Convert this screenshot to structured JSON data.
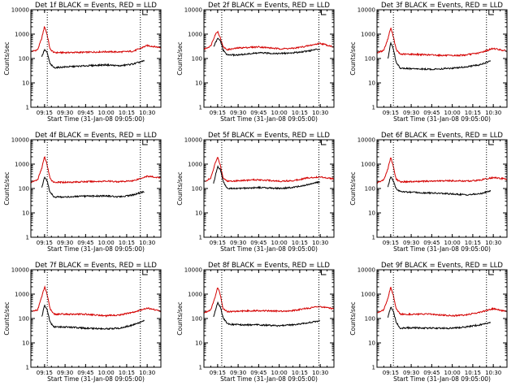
{
  "chart_data": [
    {
      "type": "line",
      "title": "Det 1f BLACK = Events, RED = LLD",
      "xlabel": "Start Time (31-Jan-08 09:05:00)",
      "ylabel": "Counts/sec",
      "yscale": "log",
      "ylim": [
        1,
        10000
      ],
      "x_ticks": [
        "09:15",
        "09:30",
        "09:45",
        "10:00",
        "10:15",
        "10:30"
      ],
      "y_ticks": [
        "1",
        "10",
        "100",
        "1000",
        "10000"
      ],
      "xlim": [
        "09:05",
        "10:40"
      ],
      "vlines": [
        "09:17",
        "10:25"
      ],
      "series": [
        {
          "color": "#d40000",
          "x": [
            "09:05",
            "09:10",
            "09:13",
            "09:15",
            "09:17",
            "09:19",
            "09:22",
            "09:30",
            "09:45",
            "10:00",
            "10:10",
            "10:20",
            "10:30",
            "10:40"
          ],
          "values": [
            190,
            230,
            700,
            2100,
            900,
            240,
            175,
            175,
            180,
            190,
            185,
            200,
            340,
            280
          ]
        },
        {
          "color": "#000000",
          "x": [
            "09:13",
            "09:15",
            "09:17",
            "09:19",
            "09:22",
            "09:30",
            "09:45",
            "10:00",
            "10:10",
            "10:20",
            "10:28"
          ],
          "values": [
            120,
            230,
            170,
            60,
            42,
            45,
            50,
            55,
            50,
            60,
            80
          ]
        }
      ]
    },
    {
      "type": "line",
      "title": "Det 2f BLACK = Events, RED = LLD",
      "xlabel": "Start Time (31-Jan-08 09:05:00)",
      "ylabel": "Counts/sec",
      "yscale": "log",
      "ylim": [
        1,
        10000
      ],
      "x_ticks": [
        "09:15",
        "09:30",
        "09:45",
        "10:00",
        "10:15",
        "10:30"
      ],
      "y_ticks": [
        "1",
        "10",
        "100",
        "1000",
        "10000"
      ],
      "xlim": [
        "09:05",
        "10:40"
      ],
      "vlines": [
        "09:18",
        "10:29"
      ],
      "series": [
        {
          "color": "#d40000",
          "x": [
            "09:05",
            "09:10",
            "09:13",
            "09:15",
            "09:17",
            "09:19",
            "09:22",
            "09:30",
            "09:45",
            "10:00",
            "10:10",
            "10:20",
            "10:30",
            "10:40"
          ],
          "values": [
            240,
            330,
            900,
            1300,
            700,
            300,
            230,
            270,
            300,
            250,
            260,
            320,
            420,
            300
          ]
        },
        {
          "color": "#000000",
          "x": [
            "09:12",
            "09:15",
            "09:17",
            "09:19",
            "09:22",
            "09:30",
            "09:45",
            "10:00",
            "10:10",
            "10:20",
            "10:30"
          ],
          "values": [
            300,
            650,
            550,
            220,
            140,
            140,
            170,
            160,
            170,
            200,
            250
          ]
        }
      ]
    },
    {
      "type": "line",
      "title": "Det 3f BLACK = Events, RED = LLD",
      "xlabel": "Start Time (31-Jan-08 09:05:00)",
      "ylabel": "Counts/sec",
      "yscale": "log",
      "ylim": [
        1,
        10000
      ],
      "x_ticks": [
        "09:15",
        "09:30",
        "09:45",
        "10:00",
        "10:15",
        "10:30"
      ],
      "y_ticks": [
        "1",
        "10",
        "100",
        "1000",
        "10000"
      ],
      "xlim": [
        "09:05",
        "10:40"
      ],
      "vlines": [
        "09:17",
        "10:25"
      ],
      "series": [
        {
          "color": "#d40000",
          "x": [
            "09:05",
            "09:10",
            "09:13",
            "09:15",
            "09:17",
            "09:19",
            "09:22",
            "09:30",
            "09:45",
            "10:00",
            "10:10",
            "10:20",
            "10:30",
            "10:40"
          ],
          "values": [
            170,
            220,
            650,
            1800,
            800,
            230,
            150,
            150,
            140,
            130,
            140,
            170,
            260,
            200
          ]
        },
        {
          "color": "#000000",
          "x": [
            "09:13",
            "09:15",
            "09:17",
            "09:19",
            "09:22",
            "09:30",
            "09:45",
            "10:00",
            "10:10",
            "10:20",
            "10:28"
          ],
          "values": [
            100,
            420,
            250,
            70,
            40,
            38,
            36,
            40,
            45,
            55,
            80
          ]
        }
      ]
    },
    {
      "type": "line",
      "title": "Det 4f BLACK = Events, RED = LLD",
      "xlabel": "Start Time (31-Jan-08 09:05:00)",
      "ylabel": "Counts/sec",
      "yscale": "log",
      "ylim": [
        1,
        10000
      ],
      "x_ticks": [
        "09:15",
        "09:30",
        "09:45",
        "10:00",
        "10:15",
        "10:30"
      ],
      "y_ticks": [
        "1",
        "10",
        "100",
        "1000",
        "10000"
      ],
      "xlim": [
        "09:05",
        "10:40"
      ],
      "vlines": [
        "09:17",
        "10:25"
      ],
      "series": [
        {
          "color": "#d40000",
          "x": [
            "09:05",
            "09:10",
            "09:13",
            "09:15",
            "09:17",
            "09:19",
            "09:22",
            "09:30",
            "09:45",
            "10:00",
            "10:10",
            "10:20",
            "10:30",
            "10:40"
          ],
          "values": [
            180,
            230,
            700,
            2000,
            900,
            250,
            180,
            180,
            190,
            200,
            190,
            210,
            320,
            270
          ]
        },
        {
          "color": "#000000",
          "x": [
            "09:13",
            "09:15",
            "09:17",
            "09:19",
            "09:22",
            "09:30",
            "09:45",
            "10:00",
            "10:10",
            "10:20",
            "10:28"
          ],
          "values": [
            110,
            300,
            200,
            70,
            45,
            45,
            48,
            50,
            45,
            55,
            75
          ]
        }
      ]
    },
    {
      "type": "line",
      "title": "Det 5f BLACK = Events, RED = LLD",
      "xlabel": "Start Time (31-Jan-08 09:05:00)",
      "ylabel": "Counts/sec",
      "yscale": "log",
      "ylim": [
        1,
        10000
      ],
      "x_ticks": [
        "09:15",
        "09:30",
        "09:45",
        "10:00",
        "10:15",
        "10:30"
      ],
      "y_ticks": [
        "1",
        "10",
        "100",
        "1000",
        "10000"
      ],
      "xlim": [
        "09:05",
        "10:40"
      ],
      "vlines": [
        "09:18",
        "10:29"
      ],
      "series": [
        {
          "color": "#d40000",
          "x": [
            "09:05",
            "09:10",
            "09:13",
            "09:15",
            "09:17",
            "09:19",
            "09:22",
            "09:30",
            "09:45",
            "10:00",
            "10:10",
            "10:20",
            "10:30",
            "10:40"
          ],
          "values": [
            190,
            260,
            1000,
            1900,
            900,
            280,
            200,
            210,
            230,
            200,
            210,
            270,
            300,
            250
          ]
        },
        {
          "color": "#000000",
          "x": [
            "09:12",
            "09:15",
            "09:17",
            "09:19",
            "09:22",
            "09:30",
            "09:45",
            "10:00",
            "10:10",
            "10:20",
            "10:30"
          ],
          "values": [
            160,
            800,
            600,
            200,
            100,
            100,
            110,
            100,
            110,
            140,
            190
          ]
        }
      ]
    },
    {
      "type": "line",
      "title": "Det 6f BLACK = Events, RED = LLD",
      "xlabel": "Start Time (31-Jan-08 09:05:00)",
      "ylabel": "Counts/sec",
      "yscale": "log",
      "ylim": [
        1,
        10000
      ],
      "x_ticks": [
        "09:15",
        "09:30",
        "09:45",
        "10:00",
        "10:15",
        "10:30"
      ],
      "y_ticks": [
        "1",
        "10",
        "100",
        "1000",
        "10000"
      ],
      "xlim": [
        "09:05",
        "10:40"
      ],
      "vlines": [
        "09:17",
        "10:25"
      ],
      "series": [
        {
          "color": "#d40000",
          "x": [
            "09:05",
            "09:10",
            "09:13",
            "09:15",
            "09:17",
            "09:19",
            "09:22",
            "09:30",
            "09:45",
            "10:00",
            "10:10",
            "10:20",
            "10:30",
            "10:40"
          ],
          "values": [
            170,
            230,
            650,
            1900,
            800,
            240,
            190,
            190,
            200,
            210,
            200,
            220,
            280,
            240
          ]
        },
        {
          "color": "#000000",
          "x": [
            "09:13",
            "09:15",
            "09:17",
            "09:19",
            "09:22",
            "09:30",
            "09:45",
            "10:00",
            "10:10",
            "10:20",
            "10:28"
          ],
          "values": [
            120,
            300,
            200,
            100,
            75,
            70,
            65,
            60,
            55,
            60,
            80
          ]
        }
      ]
    },
    {
      "type": "line",
      "title": "Det 7f BLACK = Events, RED = LLD",
      "xlabel": "Start Time (31-Jan-08 09:05:00)",
      "ylabel": "Counts/sec",
      "yscale": "log",
      "ylim": [
        1,
        10000
      ],
      "x_ticks": [
        "09:15",
        "09:30",
        "09:45",
        "10:00",
        "10:15",
        "10:30"
      ],
      "y_ticks": [
        "1",
        "10",
        "100",
        "1000",
        "10000"
      ],
      "xlim": [
        "09:05",
        "10:40"
      ],
      "vlines": [
        "09:17",
        "10:25"
      ],
      "series": [
        {
          "color": "#d40000",
          "x": [
            "09:05",
            "09:10",
            "09:13",
            "09:15",
            "09:17",
            "09:19",
            "09:22",
            "09:30",
            "09:45",
            "10:00",
            "10:10",
            "10:20",
            "10:30",
            "10:40"
          ],
          "values": [
            190,
            230,
            800,
            2000,
            900,
            250,
            150,
            150,
            150,
            130,
            140,
            180,
            270,
            200
          ]
        },
        {
          "color": "#000000",
          "x": [
            "09:13",
            "09:15",
            "09:17",
            "09:19",
            "09:22",
            "09:30",
            "09:45",
            "10:00",
            "10:10",
            "10:20",
            "10:28"
          ],
          "values": [
            120,
            350,
            220,
            70,
            45,
            45,
            40,
            38,
            40,
            55,
            80
          ]
        }
      ]
    },
    {
      "type": "line",
      "title": "Det 8f BLACK = Events, RED = LLD",
      "xlabel": "Start Time (31-Jan-08 09:05:00)",
      "ylabel": "Counts/sec",
      "yscale": "log",
      "ylim": [
        1,
        10000
      ],
      "x_ticks": [
        "09:15",
        "09:30",
        "09:45",
        "10:00",
        "10:15",
        "10:30"
      ],
      "y_ticks": [
        "1",
        "10",
        "100",
        "1000",
        "10000"
      ],
      "xlim": [
        "09:05",
        "10:40"
      ],
      "vlines": [
        "09:18",
        "10:29"
      ],
      "series": [
        {
          "color": "#d40000",
          "x": [
            "09:05",
            "09:10",
            "09:13",
            "09:15",
            "09:17",
            "09:19",
            "09:22",
            "09:30",
            "09:45",
            "10:00",
            "10:10",
            "10:20",
            "10:30",
            "10:40"
          ],
          "values": [
            170,
            230,
            700,
            2000,
            900,
            260,
            190,
            200,
            210,
            200,
            210,
            260,
            310,
            250
          ]
        },
        {
          "color": "#000000",
          "x": [
            "09:12",
            "09:15",
            "09:17",
            "09:19",
            "09:22",
            "09:30",
            "09:45",
            "10:00",
            "10:10",
            "10:20",
            "10:30"
          ],
          "values": [
            120,
            450,
            300,
            110,
            60,
            55,
            55,
            50,
            55,
            65,
            80
          ]
        }
      ]
    },
    {
      "type": "line",
      "title": "Det 9f BLACK = Events, RED = LLD",
      "xlabel": "Start Time (31-Jan-08 09:05:00)",
      "ylabel": "Counts/sec",
      "yscale": "log",
      "ylim": [
        1,
        10000
      ],
      "x_ticks": [
        "09:15",
        "09:30",
        "09:45",
        "10:00",
        "10:15",
        "10:30"
      ],
      "y_ticks": [
        "1",
        "10",
        "100",
        "1000",
        "10000"
      ],
      "xlim": [
        "09:05",
        "10:40"
      ],
      "vlines": [
        "09:17",
        "10:25"
      ],
      "series": [
        {
          "color": "#d40000",
          "x": [
            "09:05",
            "09:10",
            "09:13",
            "09:15",
            "09:17",
            "09:19",
            "09:22",
            "09:30",
            "09:45",
            "10:00",
            "10:10",
            "10:20",
            "10:30",
            "10:40"
          ],
          "values": [
            170,
            230,
            700,
            1900,
            850,
            250,
            150,
            150,
            150,
            130,
            140,
            180,
            250,
            190
          ]
        },
        {
          "color": "#000000",
          "x": [
            "09:13",
            "09:15",
            "09:17",
            "09:19",
            "09:22",
            "09:30",
            "09:45",
            "10:00",
            "10:10",
            "10:20",
            "10:28"
          ],
          "values": [
            110,
            300,
            200,
            70,
            40,
            42,
            40,
            40,
            45,
            55,
            70
          ]
        }
      ]
    }
  ]
}
